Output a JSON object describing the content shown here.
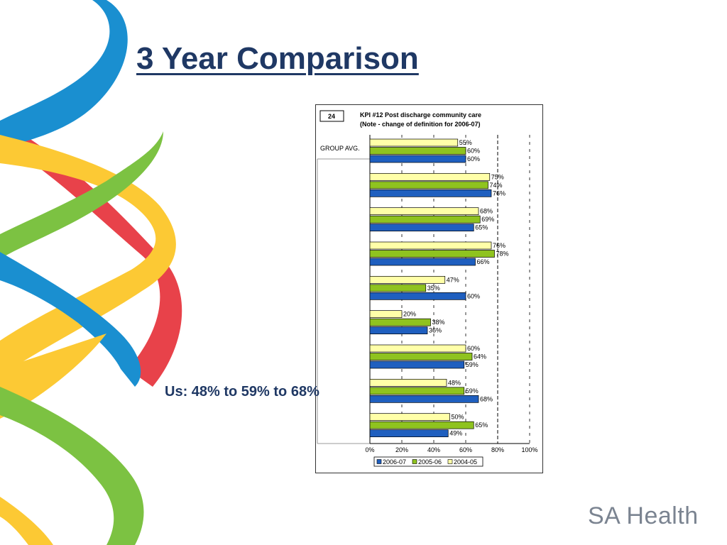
{
  "slide": {
    "title": "3 Year Comparison",
    "callout": "Us: 48% to 59% to 68%",
    "footer_logo": "SA Health"
  },
  "colors": {
    "title": "#1f3864",
    "series_2006_07": "#1f5fbf",
    "series_2005_06": "#8fc31f",
    "series_2004_05": "#ffffa8",
    "ribbon_blue": "#1a8fd0",
    "ribbon_green": "#7cc242",
    "ribbon_yellow": "#fcc934",
    "ribbon_red": "#e8424a"
  },
  "chart_data": {
    "type": "bar",
    "orientation": "horizontal",
    "page_number": "24",
    "title": "KPI #12   Post discharge community care",
    "subtitle": "(Note - change of definition for 2006-07)",
    "categories": [
      "GROUP AVG.",
      "",
      "",
      "",
      "",
      "",
      "",
      "",
      ""
    ],
    "series": [
      {
        "name": "2004-05",
        "values": [
          55,
          75,
          68,
          76,
          47,
          20,
          60,
          48,
          50
        ]
      },
      {
        "name": "2005-06",
        "values": [
          60,
          74,
          69,
          78,
          35,
          38,
          64,
          59,
          65
        ]
      },
      {
        "name": "2006-07",
        "values": [
          60,
          76,
          65,
          66,
          60,
          36,
          59,
          68,
          49
        ]
      }
    ],
    "value_labels": [
      [
        "55%",
        "75%",
        "68%",
        "76%",
        "47%",
        "20%",
        "60%",
        "48%",
        "50%"
      ],
      [
        "60%",
        "74%",
        "69%",
        "78%",
        "35%",
        "38%",
        "64%",
        "59%",
        "65%"
      ],
      [
        "60%",
        "76%",
        "65%",
        "66%",
        "60%",
        "36%",
        "59%",
        "68%",
        "49%"
      ]
    ],
    "xlim": [
      0,
      100
    ],
    "x_ticks": [
      "0%",
      "20%",
      "40%",
      "60%",
      "80%",
      "100%"
    ],
    "reference_line": 80,
    "grid": "dashed-vertical",
    "legend": {
      "placement": "bottom",
      "entries": [
        "2006-07",
        "2005-06",
        "2004-05"
      ]
    }
  }
}
